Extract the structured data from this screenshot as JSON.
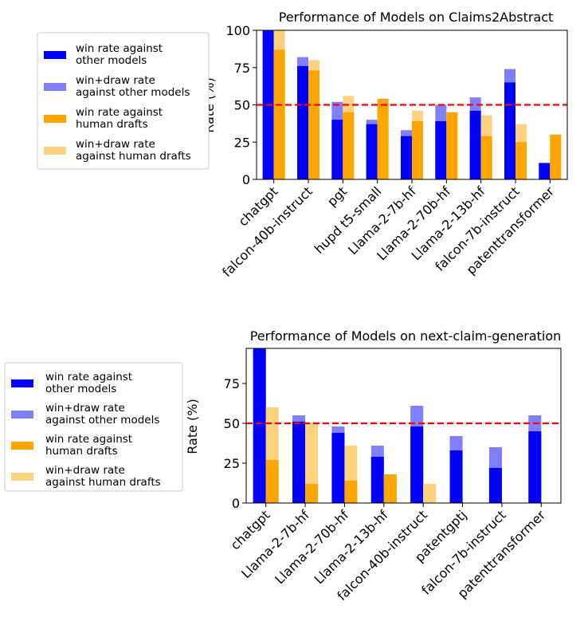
{
  "colors": {
    "win_other": "#0000ff",
    "windraw_other": "#7f7fff",
    "win_human": "#ffa500",
    "windraw_human": "#ffd280",
    "reference_line": "#ff0000"
  },
  "legend_entries": [
    {
      "line1": "win rate against",
      "line2": "other models"
    },
    {
      "line1": "win+draw rate",
      "line2": "against other models"
    },
    {
      "line1": "win rate against",
      "line2": "human drafts"
    },
    {
      "line1": "win+draw rate",
      "line2": "against human drafts"
    }
  ],
  "chart_data": [
    {
      "type": "bar",
      "title": "Performance of Models on Claims2Abstract",
      "xlabel": "",
      "ylabel": "Rate (%)",
      "ylim": [
        0,
        100
      ],
      "yticks": [
        0,
        25,
        50,
        75,
        100
      ],
      "reference_line": 50,
      "legend_placement": "left",
      "categories": [
        "chatgpt",
        "falcon-40b-instruct",
        "pgt",
        "hupd t5-small",
        "Llama-2-7b-hf",
        "Llama-2-70b-hf",
        "Llama-2-13b-hf",
        "falcon-7b-instruct",
        "patenttransformer"
      ],
      "series": [
        {
          "name": "win rate against other models",
          "values": [
            100,
            76,
            40,
            37,
            29,
            39,
            46,
            65,
            11
          ]
        },
        {
          "name": "win+draw rate against other models",
          "values": [
            100,
            82,
            52,
            40,
            33,
            50,
            55,
            74,
            11
          ]
        },
        {
          "name": "win rate against human drafts",
          "values": [
            87,
            73,
            45,
            54,
            39,
            45,
            29,
            25,
            30
          ]
        },
        {
          "name": "win+draw rate against human drafts",
          "values": [
            100,
            80,
            56,
            54,
            46,
            45,
            43,
            37,
            30
          ]
        }
      ]
    },
    {
      "type": "bar",
      "title": "Performance of Models on next-claim-generation",
      "xlabel": "",
      "ylabel": "Rate (%)",
      "ylim": [
        0,
        97
      ],
      "yticks": [
        0,
        25,
        50,
        75
      ],
      "reference_line": 50,
      "legend_placement": "left",
      "categories": [
        "chatgpt",
        "Llama-2-7b-hf",
        "Llama-2-70b-hf",
        "Llama-2-13b-hf",
        "falcon-40b-instruct",
        "patentgptj",
        "falcon-7b-instruct",
        "patenttransformer"
      ],
      "series": [
        {
          "name": "win rate against other models",
          "values": [
            97,
            51,
            44,
            29,
            48,
            33,
            22,
            45
          ]
        },
        {
          "name": "win+draw rate against other models",
          "values": [
            97,
            55,
            48,
            36,
            61,
            42,
            35,
            55
          ]
        },
        {
          "name": "win rate against human drafts",
          "values": [
            27,
            12,
            14,
            18,
            0,
            0,
            0,
            0
          ]
        },
        {
          "name": "win+draw rate against human drafts",
          "values": [
            60,
            50,
            36,
            18,
            12,
            0,
            0,
            0
          ]
        }
      ]
    }
  ]
}
